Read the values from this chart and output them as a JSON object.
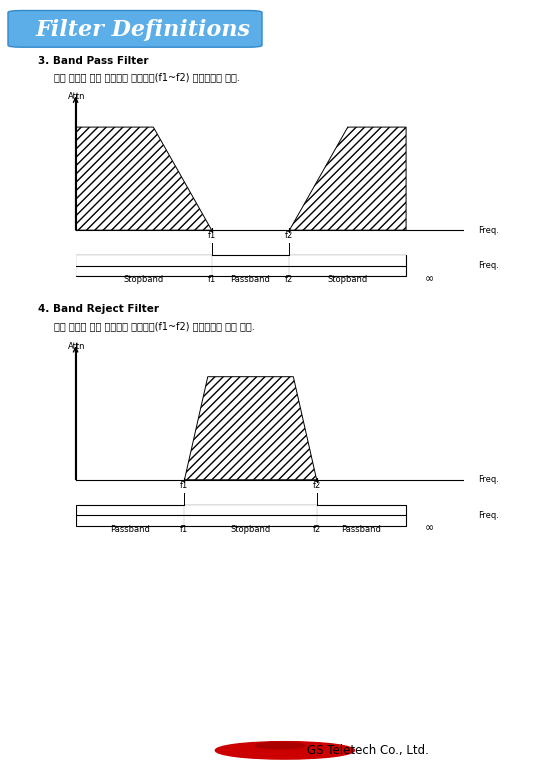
{
  "title": "Filter Definitions",
  "title_bg_color": "#5baee8",
  "title_text_color": "white",
  "title_fontsize": 16,
  "section3_title": "3. Band Pass Filter",
  "section3_desc": "아래 그림과 같이 일정대역 주파수만(f1~f2) 통과시키는 필터.",
  "section4_title": "4. Band Reject Filter",
  "section4_desc": "아래 그림과 같이 일정대역 주파수만(f1~f2) 통과시키지 않는 필터.",
  "freq_label": "Freq.",
  "atten_label": "Attn",
  "bp_stopband_left_label": "Stopband",
  "bp_f1_label": "f1",
  "bp_passband_label": "Passband",
  "bp_f2_label": "f2",
  "bp_stopband_right_label": "Stopband",
  "bp_inf_label": "∞",
  "br_passband_left_label": "Passband",
  "br_f1_label": "f1",
  "br_stopband_label": "Stopband",
  "br_f2_label": "f2",
  "br_passband_right_label": "Passband",
  "br_inf_label": "∞",
  "logo_text": "GS Teletech Co., Ltd.",
  "logo_color": "#cc0000",
  "bg_color": "white",
  "font_color": "black"
}
